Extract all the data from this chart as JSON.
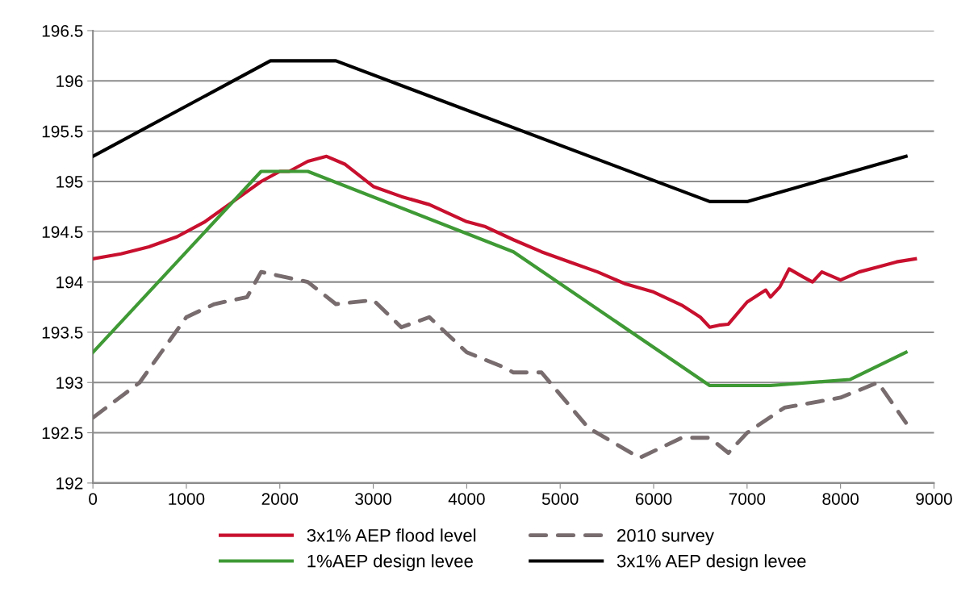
{
  "chart_data": {
    "type": "line",
    "xlim": [
      0,
      9000
    ],
    "xticks": [
      0,
      1000,
      2000,
      3000,
      4000,
      5000,
      6000,
      7000,
      8000,
      9000
    ],
    "ylim": [
      192,
      196.5
    ],
    "yticks": [
      192,
      192.5,
      193,
      193.5,
      194,
      194.5,
      195,
      195.5,
      196,
      196.5
    ],
    "grid": "y",
    "legend": "bottom",
    "series": [
      {
        "name": "3x1% AEP flood level",
        "color": "#c8102e",
        "line_style": "solid",
        "x": [
          0,
          300,
          600,
          900,
          1200,
          1500,
          1800,
          2000,
          2100,
          2300,
          2500,
          2700,
          3000,
          3300,
          3600,
          4000,
          4200,
          4500,
          4800,
          5100,
          5400,
          5700,
          6000,
          6300,
          6500,
          6600,
          6700,
          6800,
          7000,
          7200,
          7250,
          7350,
          7450,
          7600,
          7700,
          7800,
          8000,
          8200,
          8400,
          8600,
          8800
        ],
        "values": [
          194.23,
          194.28,
          194.35,
          194.45,
          194.6,
          194.8,
          195.0,
          195.1,
          195.1,
          195.2,
          195.25,
          195.17,
          194.95,
          194.85,
          194.77,
          194.6,
          194.55,
          194.42,
          194.3,
          194.2,
          194.1,
          193.98,
          193.9,
          193.77,
          193.65,
          193.55,
          193.57,
          193.58,
          193.8,
          193.92,
          193.85,
          193.95,
          194.13,
          194.05,
          194.0,
          194.1,
          194.02,
          194.1,
          194.15,
          194.2,
          194.23
        ]
      },
      {
        "name": "2010 survey",
        "color": "#786c6e",
        "line_style": "dashed",
        "x": [
          0,
          500,
          1000,
          1300,
          1650,
          1800,
          2300,
          2600,
          3000,
          3300,
          3600,
          4000,
          4400,
          4500,
          4800,
          5300,
          5850,
          6300,
          6600,
          6800,
          7000,
          7400,
          8000,
          8400,
          8700
        ],
        "values": [
          192.65,
          193.0,
          193.65,
          193.78,
          193.85,
          194.1,
          194.0,
          193.78,
          193.82,
          193.55,
          193.65,
          193.3,
          193.15,
          193.1,
          193.1,
          192.55,
          192.25,
          192.45,
          192.45,
          192.3,
          192.5,
          192.75,
          192.85,
          193.0,
          192.6
        ]
      },
      {
        "name": "1%AEP design levee",
        "color": "#3f9a35",
        "line_style": "solid",
        "x": [
          0,
          1800,
          2300,
          4500,
          6600,
          7250,
          8100,
          8700
        ],
        "values": [
          193.3,
          195.1,
          195.1,
          194.3,
          192.97,
          192.97,
          193.03,
          193.3
        ]
      },
      {
        "name": "3x1% AEP design levee",
        "color": "#000000",
        "line_style": "solid",
        "x": [
          0,
          1900,
          2600,
          6600,
          7000,
          8700
        ],
        "values": [
          195.25,
          196.2,
          196.2,
          194.8,
          194.8,
          195.25
        ]
      }
    ]
  }
}
